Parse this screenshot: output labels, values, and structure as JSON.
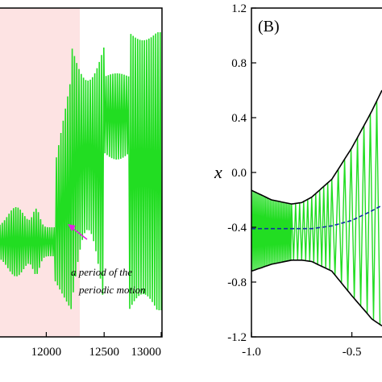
{
  "colors": {
    "series": "#22dd22",
    "highlight": "#fde3e3",
    "arrow": "#e020e0",
    "envelope": "#000000",
    "mean": "#1030a0"
  },
  "chart_data": [
    {
      "type": "line",
      "title": "",
      "xlabel": "",
      "ylabel": "",
      "xticks": [
        "12000",
        "12500",
        "13000"
      ],
      "xlim": [
        11600,
        13000
      ],
      "shaded_region": [
        11600,
        12290
      ],
      "series": [
        {
          "name": "",
          "description_points": [
            {
              "t": 11600,
              "amp_low": 0.1
            },
            {
              "t": 11850,
              "amp_low": 0.25
            },
            {
              "t": 12150,
              "amp_low": 0.05
            },
            {
              "t": 12330,
              "amp_high": 1.0
            },
            {
              "t": 12480,
              "amp_mid": 0.35
            },
            {
              "t": 12650,
              "amp_mid": 0.2
            },
            {
              "t": 12800,
              "amp_high": 1.0
            }
          ]
        }
      ],
      "annotation": {
        "line1": "a period of the",
        "line2": "periodic motion",
        "arrow_to_x": 12290
      }
    },
    {
      "type": "line",
      "panel_label": "(B)",
      "ylabel": "x",
      "xlabel": "",
      "xlim": [
        -1.0,
        -0.35
      ],
      "ylim": [
        -1.2,
        1.2
      ],
      "xticks": [
        "-1.0",
        "-0.5"
      ],
      "yticks": [
        "1.2",
        "0.8",
        "0.4",
        "0.0",
        "-0.4",
        "-0.8",
        "-1.2"
      ],
      "series": [
        {
          "name": "",
          "kind": "upper-envelope",
          "x": [
            -1.0,
            -0.9,
            -0.8,
            -0.75,
            -0.7,
            -0.6,
            -0.5,
            -0.4,
            -0.35
          ],
          "y": [
            -0.13,
            -0.2,
            -0.23,
            -0.22,
            -0.18,
            -0.05,
            0.18,
            0.45,
            0.6
          ]
        },
        {
          "name": "",
          "kind": "lower-envelope",
          "x": [
            -1.0,
            -0.9,
            -0.8,
            -0.75,
            -0.7,
            -0.6,
            -0.5,
            -0.4,
            -0.35
          ],
          "y": [
            -0.72,
            -0.67,
            -0.64,
            -0.64,
            -0.65,
            -0.72,
            -0.9,
            -1.07,
            -1.12
          ]
        },
        {
          "name": "",
          "kind": "mean",
          "x": [
            -1.0,
            -0.9,
            -0.8,
            -0.7,
            -0.6,
            -0.5,
            -0.4,
            -0.35
          ],
          "y": [
            -0.41,
            -0.41,
            -0.41,
            -0.41,
            -0.39,
            -0.35,
            -0.28,
            -0.24
          ]
        }
      ]
    }
  ]
}
